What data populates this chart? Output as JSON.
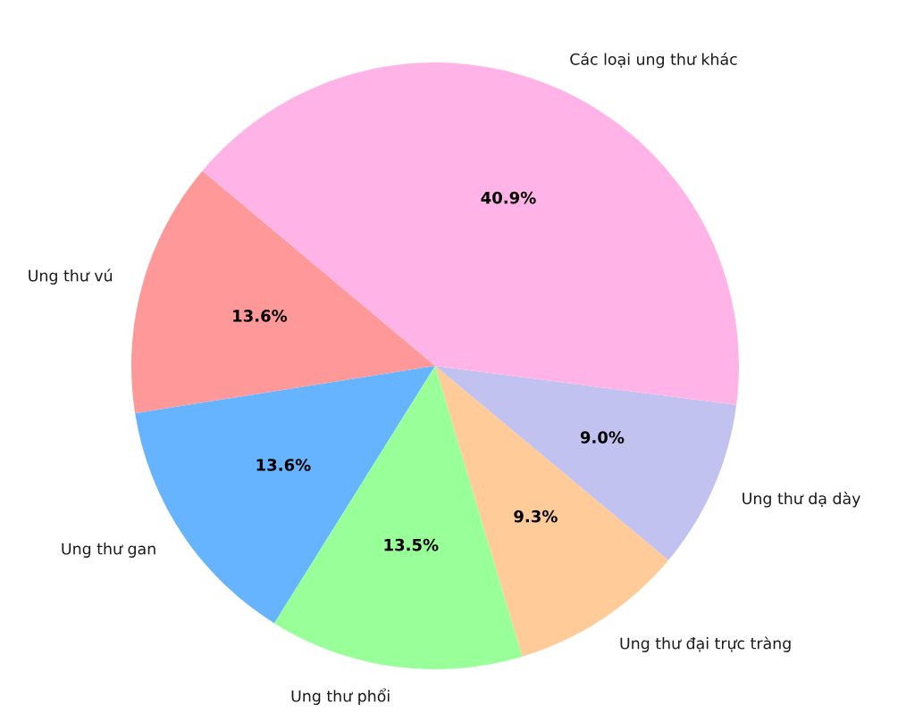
{
  "chart_data": {
    "type": "pie",
    "categories": [
      "Ung thư vú",
      "Ung thư gan",
      "Ung thư phổi",
      "Ung thư đại trực tràng",
      "Ung thư dạ dày",
      "Các loại ung thư khác"
    ],
    "values": [
      13.6,
      13.6,
      13.5,
      9.3,
      9.0,
      40.9
    ],
    "value_labels": [
      "13.6%",
      "13.6%",
      "13.5%",
      "9.3%",
      "9.0%",
      "40.9%"
    ],
    "colors": [
      "#ff9999",
      "#66b3ff",
      "#99ff99",
      "#ffcc99",
      "#c2c2f0",
      "#ffb3e6"
    ]
  }
}
